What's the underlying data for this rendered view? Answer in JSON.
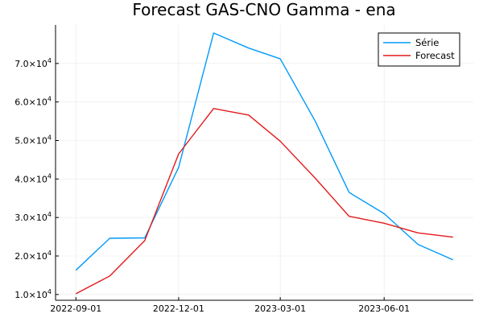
{
  "chart_data": {
    "type": "line",
    "title": "Forecast GAS-CNO Gamma - ena",
    "xlabel": "",
    "ylabel": "",
    "x": [
      "2022-09-01",
      "2022-10-01",
      "2022-11-01",
      "2022-12-01",
      "2023-01-01",
      "2023-02-01",
      "2023-03-01",
      "2023-04-01",
      "2023-05-01",
      "2023-06-01",
      "2023-07-01",
      "2023-08-01"
    ],
    "series": [
      {
        "name": "Série",
        "color": "#009AFA",
        "values": [
          16300,
          24600,
          24700,
          43000,
          77900,
          74000,
          71200,
          55000,
          36500,
          31000,
          23000,
          19000
        ]
      },
      {
        "name": "Forecast",
        "color": "#E41A1C",
        "values": [
          10200,
          14800,
          24000,
          46500,
          58300,
          56600,
          49800,
          40200,
          30300,
          28500,
          26000,
          24900
        ]
      }
    ],
    "xticks": [
      {
        "date": "2022-09-01",
        "label": "2022-09-01"
      },
      {
        "date": "2022-12-01",
        "label": "2022-12-01"
      },
      {
        "date": "2023-03-01",
        "label": "2023-03-01"
      },
      {
        "date": "2023-06-01",
        "label": "2023-06-01"
      }
    ],
    "yticks": [
      {
        "value": 10000,
        "mantissa": "1.0"
      },
      {
        "value": 20000,
        "mantissa": "2.0"
      },
      {
        "value": 30000,
        "mantissa": "3.0"
      },
      {
        "value": 40000,
        "mantissa": "4.0"
      },
      {
        "value": 50000,
        "mantissa": "5.0"
      },
      {
        "value": 60000,
        "mantissa": "6.0"
      },
      {
        "value": 70000,
        "mantissa": "7.0"
      }
    ],
    "ytick_multiplier": "×10",
    "ytick_exponent": "4",
    "xlim": [
      "2022-08-14",
      "2023-08-19"
    ],
    "ylim": [
      8500,
      80000
    ],
    "grid": true,
    "legend_position": "top-right"
  }
}
